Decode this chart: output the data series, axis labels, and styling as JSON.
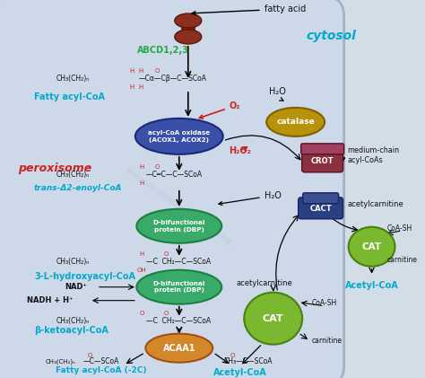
{
  "bg_color": "#c8d4e0",
  "perox_bg": "#ccd8e8",
  "perox_edge": "#9ab0c8",
  "watermark": "themedicalbiochemistrypage.org",
  "cytosol_label": "cytosol",
  "peroxisome_label": "peroxisome",
  "fatty_acid_label": "fatty acid",
  "abcd_label": "ABCD1,2,3",
  "fatty_acyl_coa_label": "Fatty acyl-CoA",
  "trans_label": "trans-Δ2-enoyl-CoA",
  "hydroxy_label": "3-L-hydroxyacyl-CoA",
  "beta_label": "β-ketoacyl-CoA",
  "fatty_acyl_2c_label": "Fatty acyl-CoA (-2C)",
  "acetyl_coa_bot_label": "Acetyl-CoA",
  "acetyl_coa_right_label": "Acetyl-CoA",
  "medium_chain_label": "medium-chain\nacyl-CoAs",
  "acetylcarnitine_cact_label": "acetylcarnitine",
  "acetylcarnitine_cat_label": "acetylcarnitine",
  "coa_sh_cat_right": "CoA-SH",
  "carnitine_cat_right": "carnitine",
  "coa_sh_cat_left": "CoA-SH",
  "carnitine_cat_left": "carnitine",
  "nad_label": "NAD⁺",
  "nadh_label": "NADH + H⁺",
  "h2o_label1": "H₂O",
  "h2o_label2": "H₂O",
  "o2_label": "O₂",
  "h2o2_label": "H₂O₂",
  "enzyme_acox": "acyl-CoA oxidase\n(ACOX1, ACOX2)",
  "enzyme_dbp1": "D-bifunctional\nprotein (DBP)",
  "enzyme_dbp2": "D-bifunctional\nprotein (DBP)",
  "enzyme_acaa1": "ACAA1",
  "enzyme_catalase": "catalase",
  "enzyme_crot": "CROT",
  "enzyme_cact": "CACT",
  "enzyme_cat_left": "CAT",
  "enzyme_cat_right": "CAT",
  "colors": {
    "acox": "#3a50a8",
    "dbp": "#3aaa6b",
    "acaa1": "#d4872a",
    "catalase": "#b8920a",
    "crot": "#8b3040",
    "cact": "#2a4080",
    "cat": "#7ab830",
    "perox_text": "#cc2222",
    "cytosol_text": "#00aacc",
    "abcd_text": "#22aa44",
    "cyan": "#00aacc",
    "red": "#cc2222",
    "transporter": "#8b3020",
    "white": "#ffffff",
    "black": "#111111",
    "wm": "#b8c8d8"
  }
}
